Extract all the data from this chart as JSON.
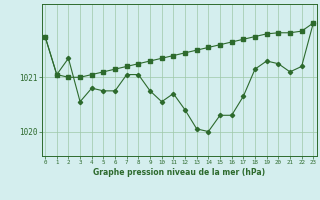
{
  "x": [
    0,
    1,
    2,
    3,
    4,
    5,
    6,
    7,
    8,
    9,
    10,
    11,
    12,
    13,
    14,
    15,
    16,
    17,
    18,
    19,
    20,
    21,
    22,
    23
  ],
  "y_main": [
    1021.75,
    1021.05,
    1021.35,
    1020.55,
    1020.8,
    1020.75,
    1020.75,
    1021.05,
    1021.05,
    1020.75,
    1020.55,
    1020.7,
    1020.4,
    1020.05,
    1020.0,
    1020.3,
    1020.3,
    1020.65,
    1021.15,
    1021.3,
    1021.25,
    1021.1,
    1021.2,
    1022.0
  ],
  "y_trend": [
    1021.75,
    1021.05,
    1021.0,
    1021.0,
    1021.05,
    1021.1,
    1021.15,
    1021.2,
    1021.25,
    1021.3,
    1021.35,
    1021.4,
    1021.45,
    1021.5,
    1021.55,
    1021.6,
    1021.65,
    1021.7,
    1021.75,
    1021.8,
    1021.82,
    1021.82,
    1021.85,
    1022.0
  ],
  "line_color": "#2d6a2d",
  "background_color": "#d4eeee",
  "grid_color": "#9ec8a8",
  "xlabel": "Graphe pression niveau de la mer (hPa)",
  "yticks": [
    1020,
    1021
  ],
  "ylim": [
    1019.55,
    1022.35
  ],
  "xlim": [
    -0.3,
    23.3
  ]
}
